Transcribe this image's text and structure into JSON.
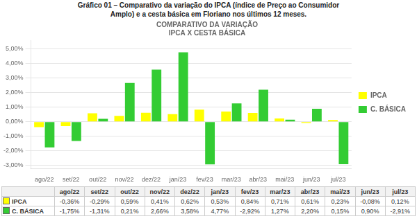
{
  "chart_data": {
    "type": "bar",
    "title": "Gráfico 01 – Comparativo da variação do IPCA (índice de Preço ao Consumidor\nAmplo) e a cesta básica em Floriano nos últimos 12 meses.",
    "subtitle": "COMPARATIVO DA VARIAÇÃO\nIPCA X CESTA BÁSICA",
    "categories": [
      "ago/22",
      "set/22",
      "out/22",
      "nov/22",
      "dez/22",
      "jan/23",
      "fev/23",
      "mar/23",
      "abr/23",
      "mai/23",
      "jun/23",
      "jul/23"
    ],
    "series": [
      {
        "name": "IPCA",
        "color": "#FFFF00",
        "values": [
          -0.36,
          -0.29,
          0.59,
          0.41,
          0.62,
          0.53,
          0.84,
          0.71,
          0.61,
          0.23,
          -0.08,
          0.12
        ],
        "value_labels": [
          "-0,36%",
          "-0,29%",
          "0,59%",
          "0,41%",
          "0,62%",
          "0,53%",
          "0,84%",
          "0,71%",
          "0,61%",
          "0,23%",
          "-0,08%",
          "0,12%"
        ]
      },
      {
        "name": "C. BÁSICA",
        "color": "#33CC33",
        "values": [
          -1.75,
          -1.31,
          0.21,
          2.66,
          3.58,
          4.77,
          -2.92,
          1.27,
          2.2,
          0.15,
          0.9,
          -2.91
        ],
        "value_labels": [
          "-1,75%",
          "-1,31%",
          "0,21%",
          "2,66%",
          "3,58%",
          "4,77%",
          "-2,92%",
          "1,27%",
          "2,20%",
          "0,15%",
          "0,90%",
          "-2,91%"
        ]
      }
    ],
    "ylim": [
      -3.2,
      5.6
    ],
    "yticks": [
      {
        "value": -3,
        "label": "-3,00%"
      },
      {
        "value": -2,
        "label": "-2,00%"
      },
      {
        "value": -1,
        "label": "-1,00%"
      },
      {
        "value": 0,
        "label": "0,00%"
      },
      {
        "value": 1,
        "label": "1,00%"
      },
      {
        "value": 2,
        "label": "2,00%"
      },
      {
        "value": 3,
        "label": "3,00%"
      },
      {
        "value": 4,
        "label": "4,00%"
      },
      {
        "value": 5,
        "label": "5,00%"
      }
    ],
    "grid": true,
    "legend": "right"
  }
}
